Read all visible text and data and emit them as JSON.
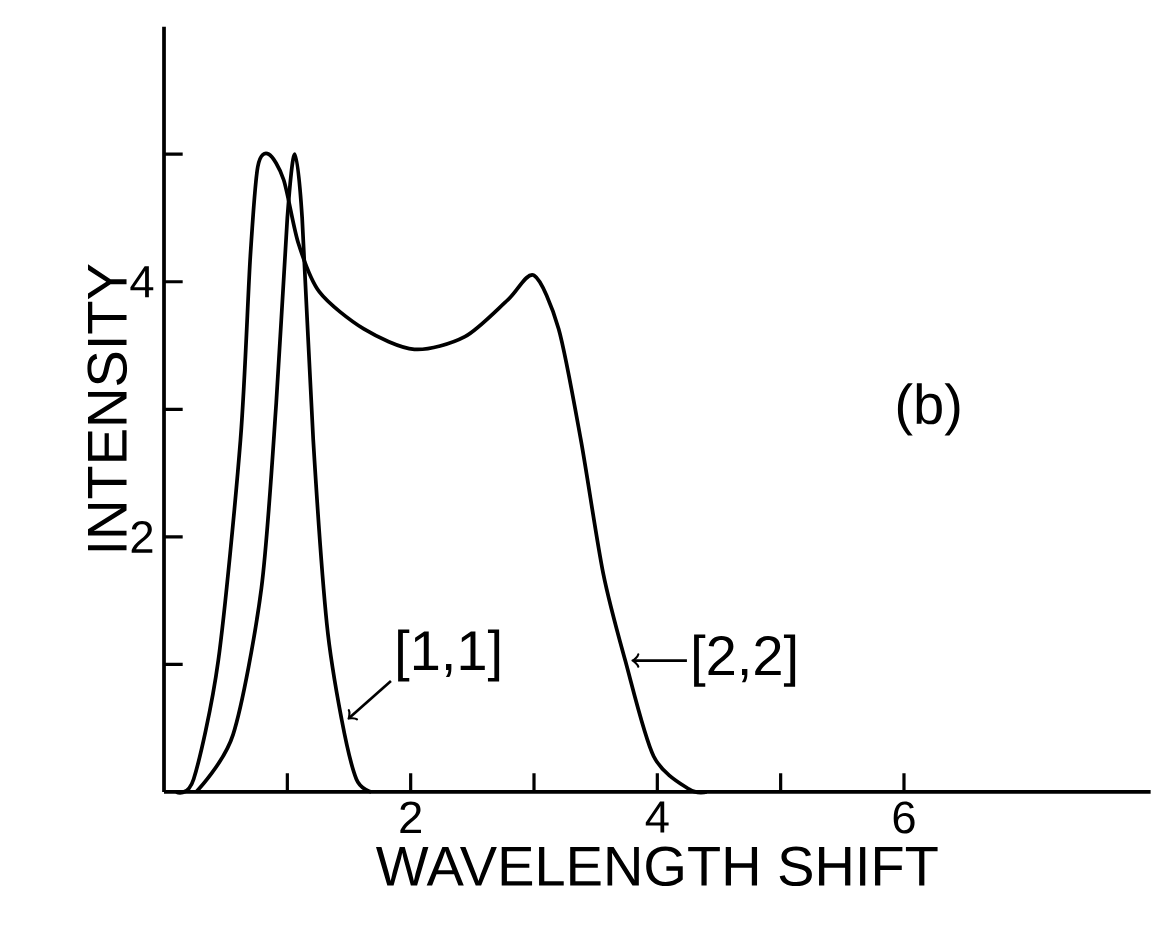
{
  "chart_data": {
    "type": "line",
    "xlabel": "WAVELENGTH SHIFT",
    "ylabel": "INTENSITY",
    "xlim": [
      0,
      8
    ],
    "ylim": [
      0,
      6
    ],
    "xticks": [
      {
        "value": 1,
        "label": null
      },
      2,
      {
        "value": 3,
        "label": null
      },
      4,
      {
        "value": 5,
        "label": null
      },
      6
    ],
    "yticks": [
      {
        "value": 1,
        "label": null
      },
      2,
      {
        "value": 3,
        "label": null
      },
      4,
      {
        "value": 5,
        "label": null
      }
    ],
    "grid": false,
    "marker": "none",
    "line_style": "solid",
    "annotations": [
      "(b)"
    ],
    "series": [
      {
        "name": "[1,1]",
        "color": "#000000",
        "x": [
          0.26,
          0.56,
          0.79,
          0.91,
          1.0,
          1.06,
          1.12,
          1.21,
          1.32,
          1.44,
          1.56,
          1.68
        ],
        "values": [
          0,
          0.45,
          1.6,
          3.05,
          4.5,
          5.0,
          4.5,
          2.76,
          1.32,
          0.57,
          0.1,
          0
        ]
      },
      {
        "name": "[2,2]",
        "color": "#000000",
        "x": [
          0.1,
          0.24,
          0.44,
          0.62,
          0.7,
          0.76,
          0.85,
          0.97,
          1.09,
          1.26,
          1.62,
          2.03,
          2.44,
          2.79,
          3.0,
          3.2,
          3.38,
          3.56,
          3.74,
          3.97,
          4.26,
          4.4
        ],
        "values": [
          0,
          0.1,
          1.03,
          2.76,
          4.2,
          4.9,
          5.0,
          4.8,
          4.3,
          3.92,
          3.63,
          3.47,
          3.57,
          3.86,
          4.05,
          3.63,
          2.76,
          1.72,
          1.03,
          0.28,
          0.02,
          0
        ]
      }
    ]
  }
}
